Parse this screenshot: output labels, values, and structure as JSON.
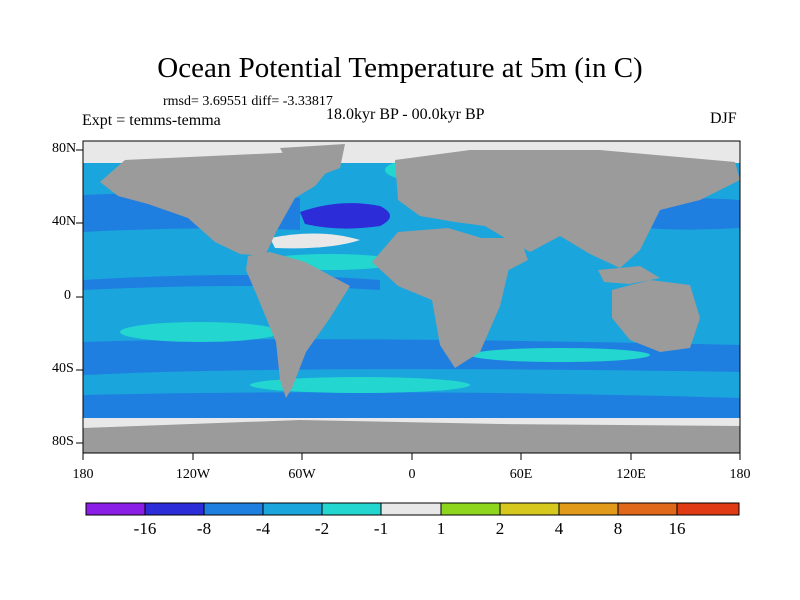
{
  "title": "Ocean Potential Temperature at 5m (in C)",
  "stats": "rmsd= 3.69551 diff= -3.33817",
  "experiment": "Expt = temms-temma",
  "period": "18.0kyr BP - 00.0kyr BP",
  "season": "DJF",
  "y_ticks": [
    "80N",
    "40N",
    "0",
    "40S",
    "80S"
  ],
  "x_ticks": [
    "180",
    "120W",
    "60W",
    "0",
    "60E",
    "120E",
    "180"
  ],
  "colorbar": {
    "labels": [
      "-16",
      "-8",
      "-4",
      "-2",
      "-1",
      "1",
      "2",
      "4",
      "8",
      "16"
    ],
    "colors": [
      "#8a1ee6",
      "#2c2cd8",
      "#1f7fe0",
      "#1aa6dc",
      "#23d6cf",
      "#e8e8e8",
      "#8ed61e",
      "#d6c81c",
      "#e19a1a",
      "#e0681a",
      "#e03a14"
    ]
  },
  "colors": {
    "land": "#9b9b9b",
    "ocean_main": "#1aa6dc",
    "ocean_cool": "#1f7fe0",
    "ocean_cold": "#2c2cd8",
    "ocean_mild": "#23d6cf",
    "ice": "#e8e8e8"
  }
}
